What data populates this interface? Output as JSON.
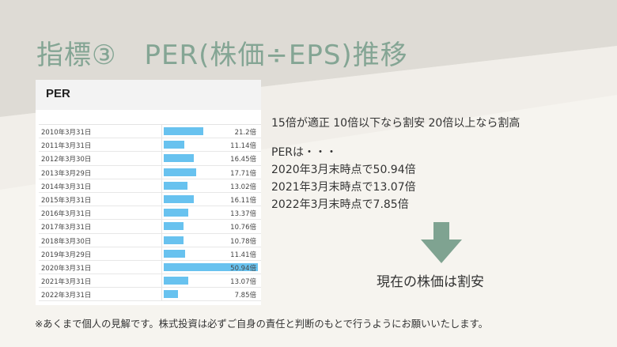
{
  "slide": {
    "title": "指標③　PER(株価÷EPS)推移",
    "table_title": "PER",
    "guide_text": "15倍が適正 10倍以下なら割安 20倍以上なら割高",
    "notes": [
      "PERは・・・",
      "2020年3月末時点で50.94倍",
      "2021年3月末時点で13.07倍",
      "2022年3月末時点で7.85倍"
    ],
    "conclusion": "現在の株価は割安",
    "disclaimer": "※あくまで個人の見解です。株式投資は必ずご自身の責任と判断のもとで行うようにお願いいたします。",
    "arrow_icon": "arrow-down-icon"
  },
  "colors": {
    "title": "#84a594",
    "arrow": "#7fa391",
    "bar": "#68c2ef",
    "background": "#f6f4ef"
  },
  "chart_data": {
    "type": "bar",
    "title": "PER",
    "orientation": "horizontal",
    "categories": [
      "2010年3月31日",
      "2011年3月31日",
      "2012年3月30日",
      "2013年3月29日",
      "2014年3月31日",
      "2015年3月31日",
      "2016年3月31日",
      "2017年3月31日",
      "2018年3月30日",
      "2019年3月29日",
      "2020年3月31日",
      "2021年3月31日",
      "2022年3月31日"
    ],
    "values": [
      21.2,
      11.14,
      16.45,
      17.71,
      13.02,
      16.11,
      13.37,
      10.76,
      10.78,
      11.41,
      50.94,
      13.07,
      7.85
    ],
    "value_labels": [
      "21.2倍",
      "11.14倍",
      "16.45倍",
      "17.71倍",
      "13.02倍",
      "16.11倍",
      "13.37倍",
      "10.76倍",
      "10.78倍",
      "11.41倍",
      "50.94倍",
      "13.07倍",
      "7.85倍"
    ],
    "xlim": [
      0,
      50.94
    ]
  }
}
